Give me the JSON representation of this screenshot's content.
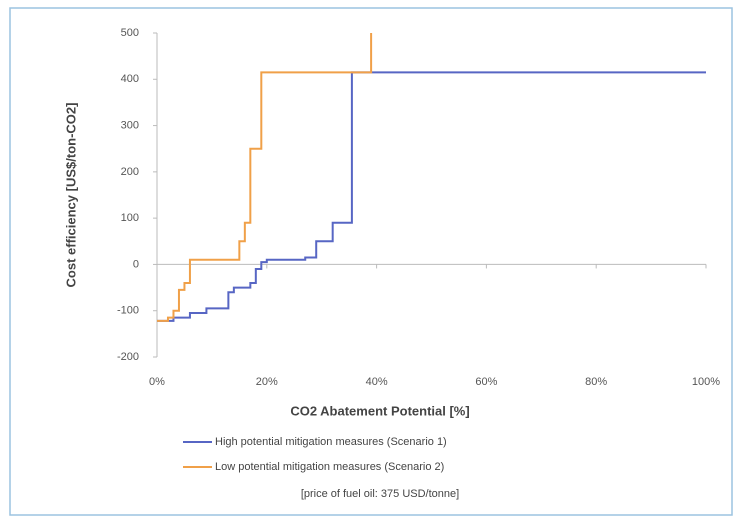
{
  "chart_data": {
    "type": "line",
    "x_label": "CO2 Abatement Potential [%]",
    "y_label": "Cost efficiency [US$/ton-CO2]",
    "note": "[price of fuel oil: 375 USD/tonne]",
    "xlim": [
      0,
      100
    ],
    "xticks": [
      {
        "value": 0,
        "label": "0%"
      },
      {
        "value": 20,
        "label": "20%"
      },
      {
        "value": 40,
        "label": "40%"
      },
      {
        "value": 60,
        "label": "60%"
      },
      {
        "value": 80,
        "label": "80%"
      },
      {
        "value": 100,
        "label": "100%"
      }
    ],
    "ylim": [
      -200,
      500
    ],
    "yticks": [
      -200,
      -100,
      0,
      100,
      200,
      300,
      400,
      500
    ],
    "grid": false,
    "series": [
      {
        "name": "High potential mitigation measures (Scenario 1)",
        "color": "#5766c4",
        "x": [
          0,
          3,
          3,
          6,
          6,
          9,
          9,
          13,
          13,
          14,
          14,
          17,
          17,
          18,
          18,
          19,
          19,
          20,
          20,
          27,
          27,
          29,
          29,
          32,
          32,
          35.5,
          35.5,
          100
        ],
        "values": [
          -122,
          -122,
          -115,
          -115,
          -105,
          -105,
          -95,
          -95,
          -60,
          -60,
          -50,
          -50,
          -40,
          -40,
          -10,
          -10,
          5,
          5,
          10,
          10,
          15,
          15,
          50,
          50,
          90,
          90,
          415,
          415
        ]
      },
      {
        "name": "Low potential mitigation measures (Scenario 2)",
        "color": "#f0a048",
        "x": [
          0,
          2,
          2,
          3,
          3,
          4,
          4,
          5,
          5,
          6,
          6,
          15,
          15,
          16,
          16,
          17,
          17,
          19,
          19,
          39,
          39
        ],
        "values": [
          -122,
          -122,
          -115,
          -115,
          -100,
          -100,
          -55,
          -55,
          -40,
          -40,
          10,
          10,
          50,
          50,
          90,
          90,
          250,
          250,
          415,
          415,
          500
        ]
      }
    ]
  }
}
